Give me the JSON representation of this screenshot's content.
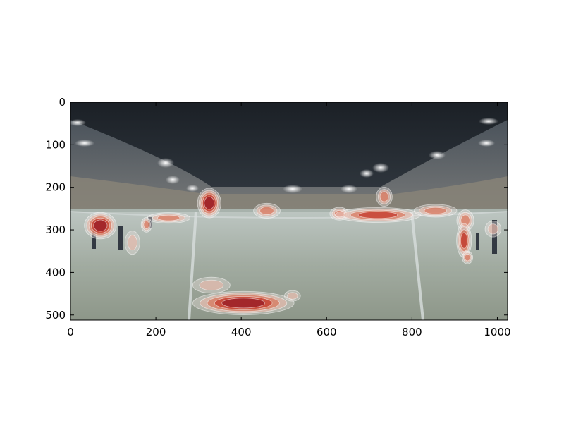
{
  "chart_data": {
    "type": "heatmap",
    "title": "",
    "xlabel": "",
    "ylabel": "",
    "xlim": [
      0,
      1024
    ],
    "ylim": [
      512,
      0
    ],
    "y_inverted": true,
    "grid": false,
    "x_ticks": [
      0,
      200,
      400,
      600,
      800,
      1000
    ],
    "y_ticks": [
      0,
      100,
      200,
      300,
      400,
      500
    ],
    "background": "equirectangular 360-degree panorama of a snow-covered football stadium at night with floodlights and players",
    "colormap": [
      "#f4e9e6",
      "#e7b6a6",
      "#d96a4f",
      "#c0261b",
      "#8a0d1e"
    ],
    "hotspots": [
      {
        "x": 70,
        "y": 290,
        "rx": 30,
        "ry": 25,
        "intensity": 0.95
      },
      {
        "x": 145,
        "y": 330,
        "rx": 14,
        "ry": 22,
        "intensity": 0.45
      },
      {
        "x": 178,
        "y": 288,
        "rx": 10,
        "ry": 14,
        "intensity": 0.5
      },
      {
        "x": 230,
        "y": 272,
        "rx": 40,
        "ry": 10,
        "intensity": 0.5
      },
      {
        "x": 325,
        "y": 237,
        "rx": 22,
        "ry": 28,
        "intensity": 1.0
      },
      {
        "x": 460,
        "y": 255,
        "rx": 25,
        "ry": 14,
        "intensity": 0.55
      },
      {
        "x": 405,
        "y": 472,
        "rx": 95,
        "ry": 22,
        "intensity": 0.95
      },
      {
        "x": 330,
        "y": 430,
        "rx": 35,
        "ry": 15,
        "intensity": 0.4
      },
      {
        "x": 520,
        "y": 455,
        "rx": 15,
        "ry": 10,
        "intensity": 0.45
      },
      {
        "x": 630,
        "y": 262,
        "rx": 18,
        "ry": 12,
        "intensity": 0.6
      },
      {
        "x": 720,
        "y": 265,
        "rx": 80,
        "ry": 14,
        "intensity": 0.75
      },
      {
        "x": 735,
        "y": 222,
        "rx": 15,
        "ry": 18,
        "intensity": 0.5
      },
      {
        "x": 855,
        "y": 255,
        "rx": 40,
        "ry": 12,
        "intensity": 0.6
      },
      {
        "x": 925,
        "y": 278,
        "rx": 16,
        "ry": 20,
        "intensity": 0.6
      },
      {
        "x": 922,
        "y": 325,
        "rx": 14,
        "ry": 32,
        "intensity": 0.7
      },
      {
        "x": 930,
        "y": 365,
        "rx": 10,
        "ry": 12,
        "intensity": 0.55
      },
      {
        "x": 990,
        "y": 298,
        "rx": 15,
        "ry": 15,
        "intensity": 0.45
      }
    ]
  }
}
